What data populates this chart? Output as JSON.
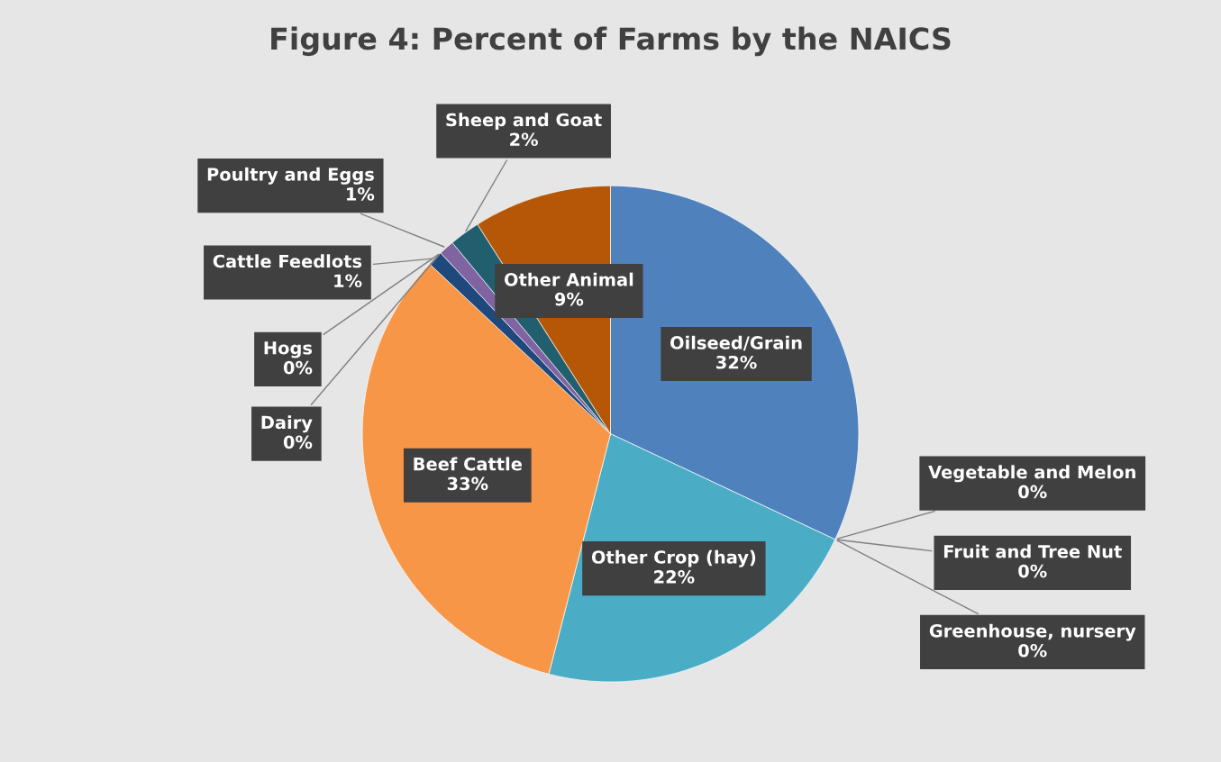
{
  "chart_data": {
    "type": "pie",
    "title": "Figure 4: Percent of Farms by the NAICS",
    "categories": [
      "Oilseed/Grain",
      "Vegetable and Melon",
      "Fruit and Tree Nut",
      "Greenhouse, nursery",
      "Other Crop (hay)",
      "Beef Cattle",
      "Cattle Feedlots",
      "Dairy",
      "Hogs",
      "Poultry and Eggs",
      "Sheep and Goat",
      "Other Animal"
    ],
    "values": [
      32,
      0,
      0,
      0,
      22,
      33,
      1,
      0,
      0,
      1,
      2,
      9
    ],
    "value_labels": [
      "32%",
      "0%",
      "0%",
      "0%",
      "22%",
      "33%",
      "1%",
      "0%",
      "0%",
      "1%",
      "2%",
      "9%"
    ],
    "colors": [
      "#4f81bd",
      "#c0504d",
      "#9bbb59",
      "#8064a2",
      "#4bacc6",
      "#f79646",
      "#1f497d",
      "#c0504d",
      "#9bbb59",
      "#8064a2",
      "#215f6e",
      "#b65708"
    ],
    "legend": false
  }
}
